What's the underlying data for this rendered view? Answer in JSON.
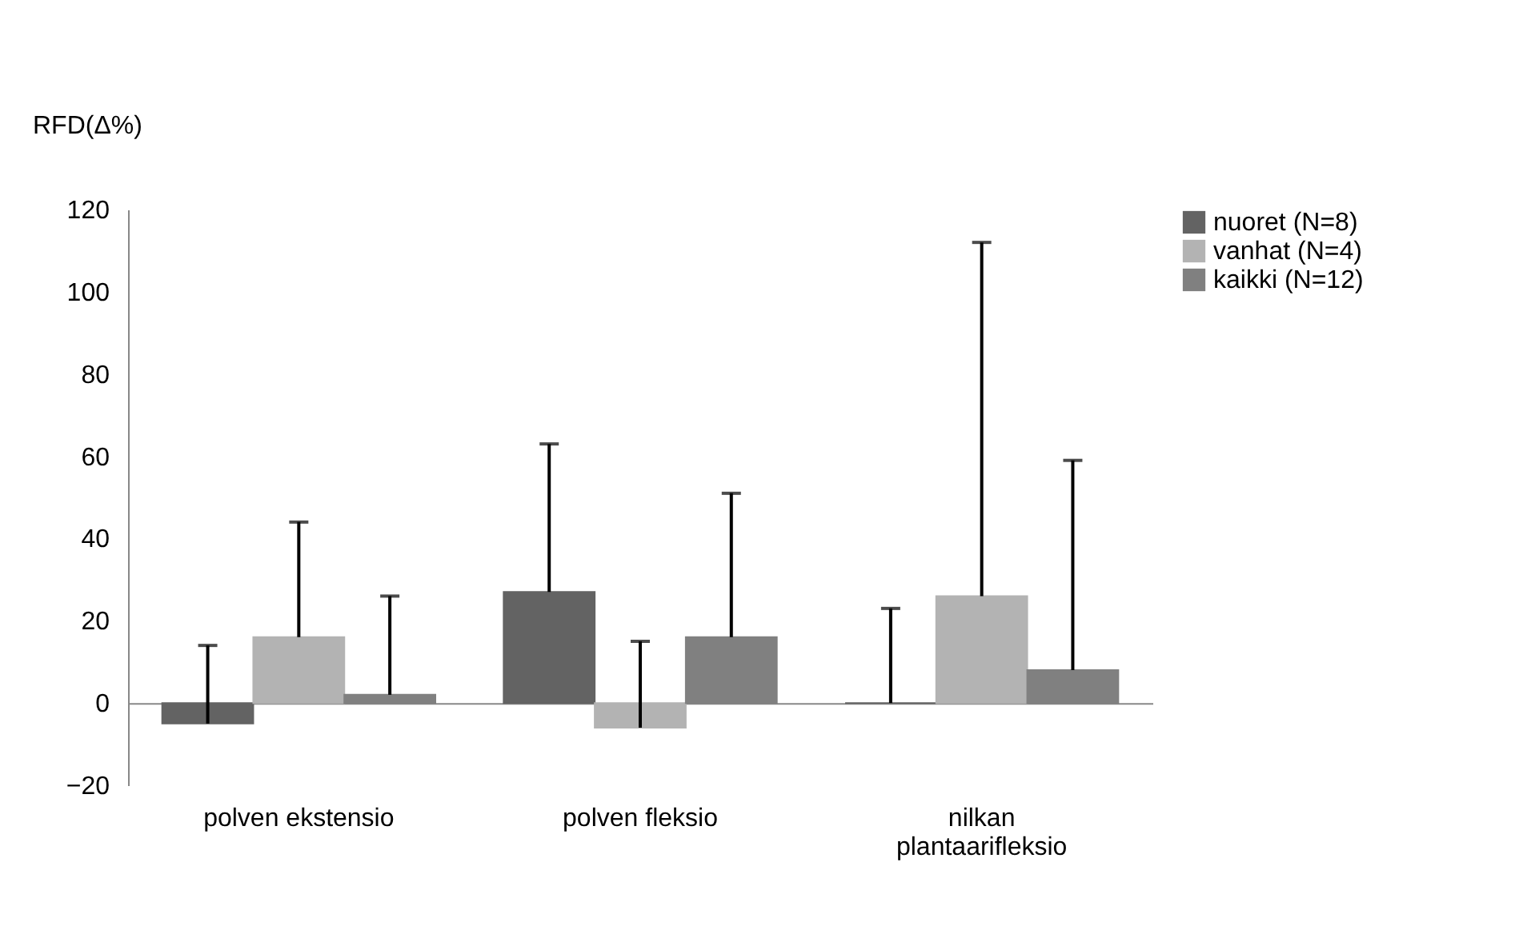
{
  "chart_data": {
    "type": "bar",
    "ylabel": "RFD(Δ%)",
    "categories": [
      "polven ekstensio",
      "polven fleksio",
      "nilkan plantaarifleksio"
    ],
    "series": [
      {
        "name": "nuoret (N=8)",
        "color": "#636363",
        "values": [
          -5,
          27,
          0
        ],
        "errors": [
          [
            -5,
            14
          ],
          [
            27,
            63
          ],
          [
            0,
            23
          ]
        ]
      },
      {
        "name": "vanhat (N=4)",
        "color": "#b3b3b3",
        "values": [
          16,
          -6,
          26
        ],
        "errors": [
          [
            16,
            44
          ],
          [
            -6,
            15
          ],
          [
            26,
            112
          ]
        ]
      },
      {
        "name": "kaikki (N=12)",
        "color": "#808080",
        "values": [
          2,
          16,
          8
        ],
        "errors": [
          [
            2,
            26
          ],
          [
            16,
            51
          ],
          [
            8,
            59
          ]
        ]
      }
    ],
    "ylim": [
      -20,
      120
    ],
    "yticks": [
      -20,
      0,
      20,
      40,
      60,
      80,
      100,
      120
    ],
    "legend": "right"
  }
}
